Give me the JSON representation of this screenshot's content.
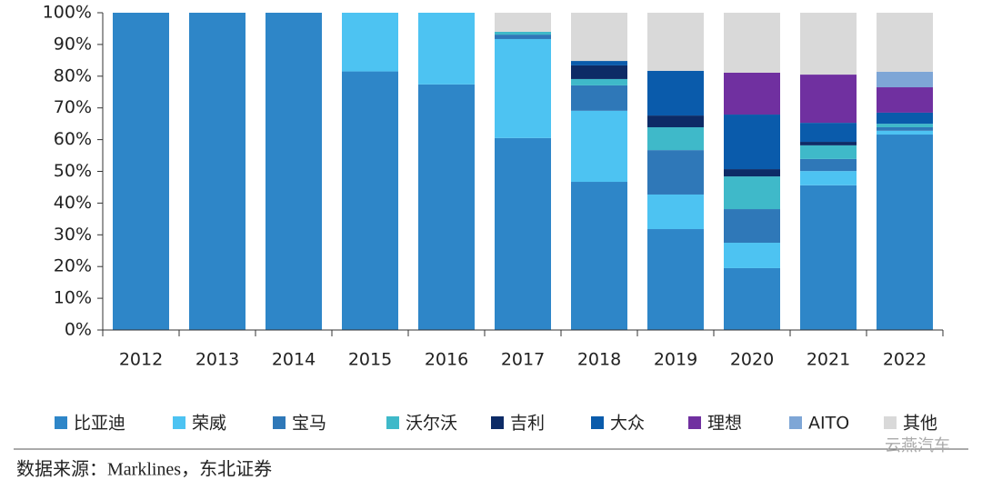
{
  "chart_data": {
    "type": "stacked_bar",
    "categories": [
      "2012",
      "2013",
      "2014",
      "2015",
      "2016",
      "2017",
      "2018",
      "2019",
      "2020",
      "2021",
      "2022"
    ],
    "series": [
      {
        "name": "比亚迪",
        "color": "#2e86c8",
        "values": [
          100,
          100,
          100,
          81.5,
          77.4,
          60.5,
          46.7,
          31.8,
          19.5,
          45.6,
          61.6
        ]
      },
      {
        "name": "荣威",
        "color": "#4dc3f2",
        "values": [
          0,
          0,
          0,
          18.5,
          22.6,
          31.2,
          22.4,
          10.9,
          8,
          4.5,
          1.2
        ]
      },
      {
        "name": "宝马",
        "color": "#2f78b8",
        "values": [
          0,
          0,
          0,
          0,
          0,
          1.4,
          8,
          14,
          10.6,
          3.8,
          1.1
        ]
      },
      {
        "name": "沃尔沃",
        "color": "#3fb9c9",
        "values": [
          0,
          0,
          0,
          0,
          0,
          0.9,
          2,
          7.2,
          10.3,
          4.3,
          1.1
        ]
      },
      {
        "name": "吉利",
        "color": "#0d2b66",
        "values": [
          0,
          0,
          0,
          0,
          0,
          0,
          4.3,
          3.7,
          2.3,
          1.1,
          0
        ]
      },
      {
        "name": "大众",
        "color": "#0a5bab",
        "values": [
          0,
          0,
          0,
          0,
          0,
          0,
          1.4,
          14.1,
          17.2,
          6,
          3.5
        ]
      },
      {
        "name": "理想",
        "color": "#7030a0",
        "values": [
          0,
          0,
          0,
          0,
          0,
          0,
          0,
          0,
          13.2,
          15.2,
          8
        ]
      },
      {
        "name": "AITO",
        "color": "#7ea6d6",
        "values": [
          0,
          0,
          0,
          0,
          0,
          0,
          0,
          0,
          0,
          0,
          4.9
        ]
      },
      {
        "name": "其他",
        "color": "#d9d9d9",
        "values": [
          0,
          0,
          0,
          0,
          0,
          6,
          15.2,
          18.3,
          18.9,
          19.5,
          18.6
        ]
      }
    ],
    "ylim": [
      0,
      100
    ],
    "yticks": [
      {
        "value": 0,
        "label": "0%"
      },
      {
        "value": 10,
        "label": "10%"
      },
      {
        "value": 20,
        "label": "20%"
      },
      {
        "value": 30,
        "label": "30%"
      },
      {
        "value": 40,
        "label": "40%"
      },
      {
        "value": 50,
        "label": "50%"
      },
      {
        "value": 60,
        "label": "60%"
      },
      {
        "value": 70,
        "label": "70%"
      },
      {
        "value": 80,
        "label": "80%"
      },
      {
        "value": 90,
        "label": "90%"
      },
      {
        "value": 100,
        "label": "100%"
      }
    ],
    "legend": "bottom",
    "source": "数据来源：Marklines，东北证券",
    "watermark": "云燕汽车"
  }
}
